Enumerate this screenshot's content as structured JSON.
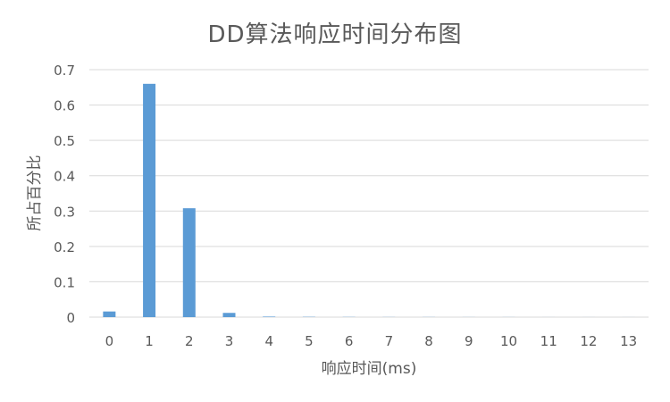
{
  "chart_data": {
    "type": "bar",
    "title": "DD算法响应时间分布图",
    "xlabel": "响应时间(ms)",
    "ylabel": "所占百分比",
    "categories": [
      "0",
      "1",
      "2",
      "3",
      "4",
      "5",
      "6",
      "7",
      "8",
      "9",
      "10",
      "11",
      "12",
      "13"
    ],
    "values": [
      0.016,
      0.66,
      0.308,
      0.012,
      0.0015,
      0.0008,
      0.0005,
      0.0003,
      0.0003,
      0.0002,
      0.0002,
      0.0001,
      0.0001,
      0.0001
    ],
    "ylim": [
      0,
      0.7
    ],
    "yticks": [
      "0",
      "0.1",
      "0.2",
      "0.3",
      "0.4",
      "0.5",
      "0.6",
      "0.7"
    ],
    "grid": true,
    "legend": "none",
    "bar_color": "#5B9BD5",
    "grid_color": "#D9D9D9"
  }
}
